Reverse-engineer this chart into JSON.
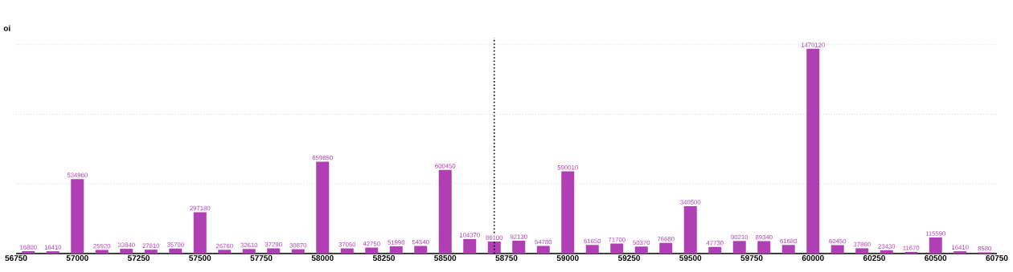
{
  "chart_data": {
    "type": "bar",
    "ylabel": "oi",
    "x": [
      56800,
      56900,
      57000,
      57100,
      57200,
      57300,
      57400,
      57500,
      57600,
      57700,
      57800,
      57900,
      58000,
      58100,
      58200,
      58300,
      58400,
      58500,
      58600,
      58700,
      58800,
      58900,
      59000,
      59100,
      59200,
      59300,
      59400,
      59500,
      59600,
      59700,
      59800,
      59900,
      60000,
      60100,
      60200,
      60300,
      60400,
      60500,
      60600,
      60700
    ],
    "values": [
      16800,
      16410,
      534960,
      25920,
      33840,
      27810,
      35700,
      297180,
      26760,
      32610,
      37290,
      30870,
      659850,
      37050,
      42750,
      51990,
      54540,
      600450,
      104370,
      86100,
      92130,
      54780,
      590010,
      61650,
      71700,
      50370,
      76680,
      340500,
      47730,
      90210,
      89340,
      61680,
      1470120,
      60450,
      37860,
      23430,
      11670,
      115590,
      16410,
      8580
    ],
    "color": "#b03fb5",
    "data_labels": true,
    "xlim": [
      56750,
      60750
    ],
    "xticks": [
      56750,
      57000,
      57250,
      57500,
      57750,
      58000,
      58250,
      58500,
      58750,
      59000,
      59250,
      59500,
      59750,
      60000,
      60250,
      60500,
      60750
    ],
    "ylim": [
      0,
      1550000
    ],
    "grid": "y",
    "ref_lines": [
      {
        "axis": "x",
        "value": 58700,
        "label": null,
        "color": "#000000",
        "line_style": "dotted"
      }
    ]
  }
}
